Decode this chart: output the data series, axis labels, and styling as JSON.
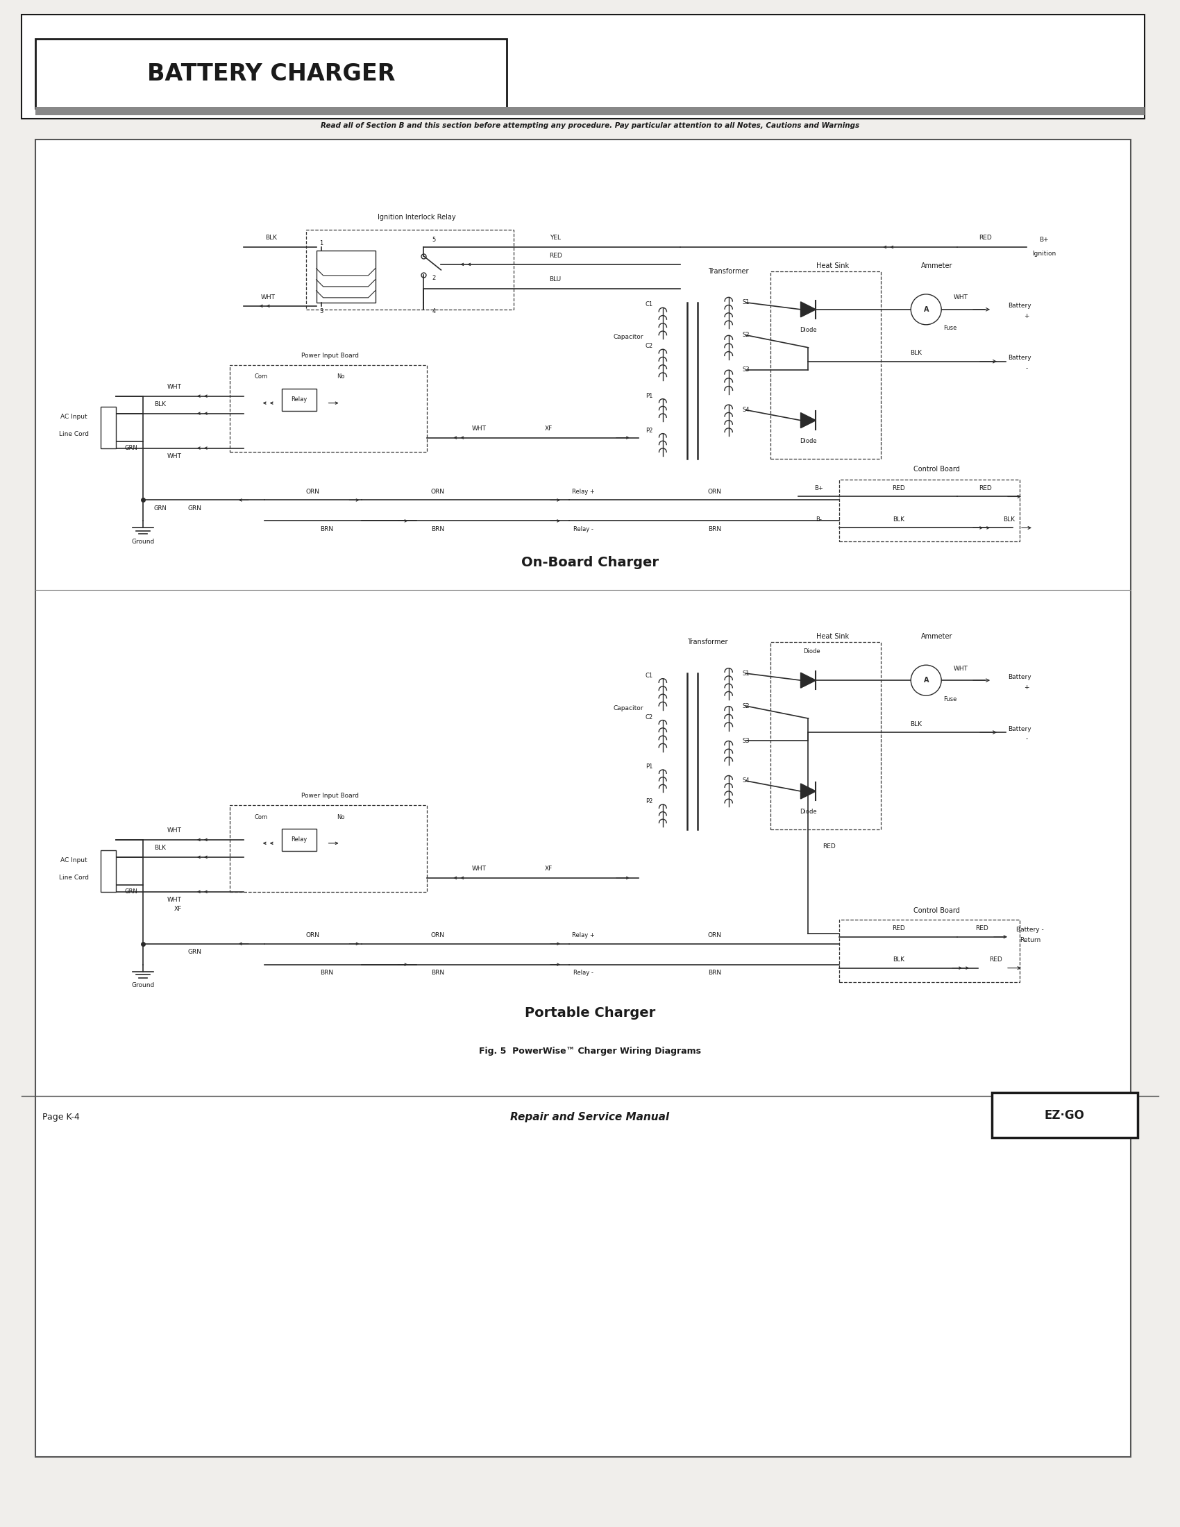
{
  "title": "BATTERY CHARGER",
  "subtitle": "Read all of Section B and this section before attempting any procedure. Pay particular attention to all Notes, Cautions and Warnings",
  "fig_caption": "Fig. 5  PowerWise™ Charger Wiring Diagrams",
  "page_label": "Page K-4",
  "manual_label": "Repair and Service Manual",
  "diagram1_title": "On-Board Charger",
  "diagram2_title": "Portable Charger",
  "bg_color": "#f0eeeb",
  "diagram_bg": "#ffffff",
  "line_color": "#2a2a2a",
  "text_color": "#1a1a1a",
  "dashed_color": "#333333"
}
